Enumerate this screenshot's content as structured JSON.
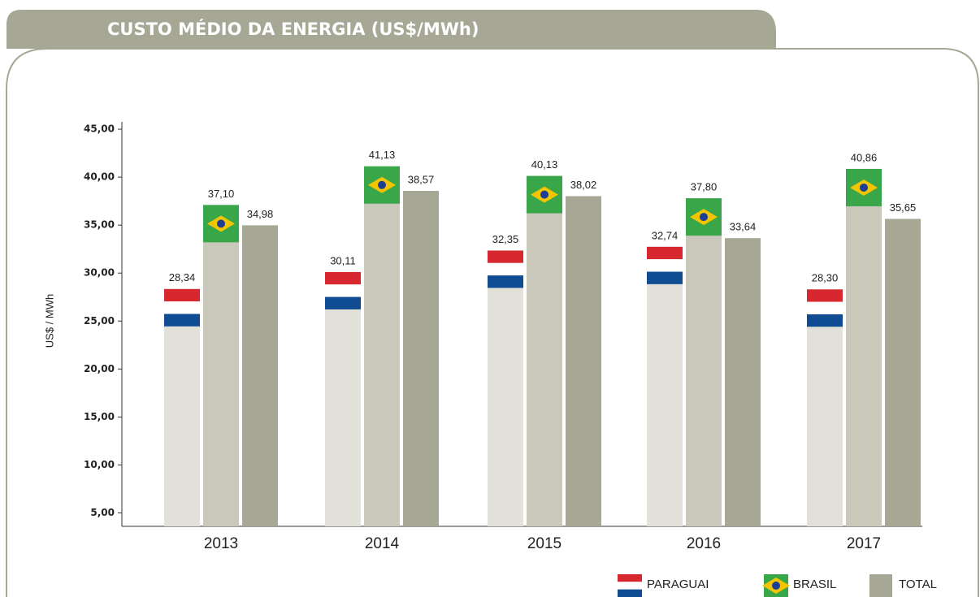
{
  "chart_data": {
    "type": "bar",
    "title": "CUSTO MÉDIO DA ENERGIA  (US$/MWh)",
    "y_label": "US$ / MWh",
    "categories": [
      "2013",
      "2014",
      "2015",
      "2016",
      "2017"
    ],
    "series": [
      {
        "name": "PARAGUAI",
        "color": "#e1e1da",
        "values": [
          28.34,
          30.11,
          32.35,
          32.74,
          28.3
        ],
        "value_labels": [
          "28,34",
          "30,11",
          "32,35",
          "32,74",
          "28,30"
        ]
      },
      {
        "name": "BRASIL",
        "color": "#c9c8ba",
        "values": [
          37.1,
          41.13,
          40.13,
          37.8,
          40.86
        ],
        "value_labels": [
          "37,10",
          "41,13",
          "40,13",
          "37,80",
          "40,86"
        ]
      },
      {
        "name": "TOTAL",
        "color": "#a7a796",
        "values": [
          34.98,
          38.57,
          38.02,
          33.64,
          35.65
        ],
        "value_labels": [
          "34,98",
          "38,57",
          "38,02",
          "33,64",
          "35,65"
        ]
      }
    ],
    "ylim": [
      3.6,
      50
    ],
    "yticks": [
      {
        "value": 5,
        "label": "5,00"
      },
      {
        "value": 10,
        "label": "10,00"
      },
      {
        "value": 15,
        "label": "15,00"
      },
      {
        "value": 20,
        "label": "20,00"
      },
      {
        "value": 25,
        "label": "25,00"
      },
      {
        "value": 30,
        "label": "30,00"
      },
      {
        "value": 35,
        "label": "35,00"
      },
      {
        "value": 40,
        "label": "40,00"
      },
      {
        "value": 45,
        "label": "45,00"
      }
    ]
  }
}
